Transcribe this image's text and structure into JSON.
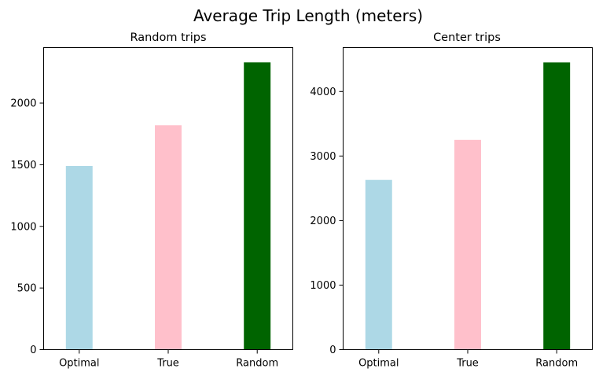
{
  "figure": {
    "title": "Average Trip Length (meters)"
  },
  "chart_data": [
    {
      "type": "bar",
      "title": "Random trips",
      "xlabel": "",
      "ylabel": "",
      "categories": [
        "Optimal",
        "True",
        "Random"
      ],
      "values": [
        1490,
        1820,
        2330
      ],
      "colors": [
        "#add8e6",
        "#ffc0cb",
        "#006400"
      ],
      "ylim": [
        0,
        2450
      ],
      "yticks": [
        0,
        500,
        1000,
        1500,
        2000
      ],
      "grid": false,
      "legend": "none"
    },
    {
      "type": "bar",
      "title": "Center trips",
      "xlabel": "",
      "ylabel": "",
      "categories": [
        "Optimal",
        "True",
        "Random"
      ],
      "values": [
        2630,
        3250,
        4450
      ],
      "colors": [
        "#add8e6",
        "#ffc0cb",
        "#006400"
      ],
      "ylim": [
        0,
        4680
      ],
      "yticks": [
        0,
        1000,
        2000,
        3000,
        4000
      ],
      "grid": false,
      "legend": "none"
    }
  ]
}
